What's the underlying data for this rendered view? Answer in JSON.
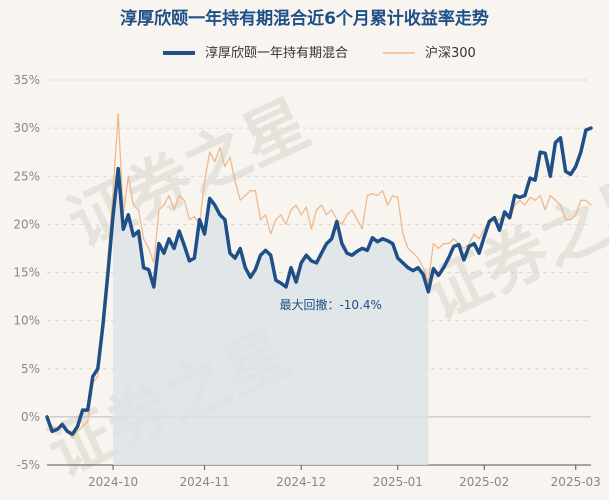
{
  "chart_data": {
    "type": "line",
    "title": "淳厚欣颐一年持有期混合近6个月累计收益率走势",
    "watermark": "证券之星",
    "y_ticks": [
      "35%",
      "30%",
      "25%",
      "20%",
      "15%",
      "10%",
      "5%",
      "0%",
      "-5%"
    ],
    "y_tick_values": [
      35,
      30,
      25,
      20,
      15,
      10,
      5,
      0,
      -5
    ],
    "ylim": [
      -5,
      35
    ],
    "x_ticks": [
      "2024-10",
      "2024-11",
      "2024-12",
      "2025-01",
      "2025-02",
      "2025-03"
    ],
    "x_tick_indices": [
      13,
      31,
      50,
      69,
      86,
      104
    ],
    "grid": true,
    "legend_position": "top",
    "annotation": {
      "label": "最大回撤：",
      "value": "-10.4%",
      "start_index": 13,
      "end_index": 75
    },
    "colors": {
      "fund": "#1e4f87",
      "hs300": "#f0b98c",
      "drawdown_fill": "#dde3e8",
      "grid": "#d8d8d8",
      "zero_line": "#bbbbbb"
    },
    "series": [
      {
        "name": "淳厚欣颐一年持有期混合",
        "values": [
          0.0,
          -1.5,
          -1.3,
          -0.8,
          -1.5,
          -1.8,
          -1.0,
          0.7,
          0.7,
          4.2,
          5.0,
          9.5,
          15.0,
          21.0,
          25.8,
          19.5,
          21.0,
          18.8,
          19.3,
          15.5,
          15.3,
          13.5,
          18.0,
          17.0,
          18.5,
          17.5,
          19.3,
          17.8,
          16.2,
          16.5,
          20.5,
          19.0,
          22.7,
          22.0,
          21.0,
          20.5,
          17.0,
          16.5,
          17.5,
          15.5,
          14.5,
          15.3,
          16.8,
          17.3,
          16.8,
          14.2,
          13.9,
          13.5,
          15.5,
          14.0,
          16.0,
          16.8,
          16.2,
          16.0,
          17.0,
          18.0,
          18.5,
          20.3,
          18.0,
          17.0,
          16.8,
          17.2,
          17.5,
          17.3,
          18.6,
          18.2,
          18.5,
          18.3,
          18.0,
          16.5,
          16.0,
          15.5,
          15.2,
          15.5,
          14.8,
          13.0,
          15.4,
          14.7,
          15.5,
          16.5,
          17.7,
          17.9,
          16.3,
          17.7,
          18.0,
          17.0,
          18.7,
          20.3,
          20.7,
          19.4,
          21.3,
          20.7,
          23.0,
          22.8,
          23.0,
          24.8,
          24.6,
          27.5,
          27.4,
          25.0,
          28.5,
          29.0,
          25.5,
          25.2,
          26.0,
          27.5,
          29.8,
          30.0
        ]
      },
      {
        "name": "沪深300",
        "values": [
          0.0,
          -1.0,
          -1.2,
          -0.5,
          -1.5,
          -2.2,
          -1.5,
          -1.0,
          -0.5,
          3.5,
          4.2,
          10.5,
          16.5,
          23.5,
          31.5,
          21.0,
          25.0,
          22.0,
          21.5,
          18.5,
          17.5,
          16.0,
          21.5,
          22.0,
          23.0,
          21.5,
          23.0,
          22.5,
          20.5,
          20.8,
          20.0,
          24.5,
          27.5,
          26.5,
          28.0,
          26.0,
          27.0,
          24.5,
          22.5,
          23.0,
          23.5,
          23.5,
          20.5,
          21.0,
          19.0,
          20.5,
          21.0,
          20.0,
          21.5,
          22.0,
          21.0,
          21.8,
          19.5,
          21.5,
          22.0,
          21.0,
          21.5,
          20.5,
          20.0,
          21.0,
          21.5,
          20.5,
          19.5,
          23.0,
          23.2,
          23.0,
          23.5,
          22.0,
          23.0,
          22.8,
          19.0,
          17.5,
          17.0,
          16.5,
          15.5,
          14.0,
          18.0,
          17.5,
          18.0,
          18.0,
          18.5,
          18.0,
          17.5,
          18.0,
          19.0,
          18.5,
          19.5,
          20.5,
          20.3,
          20.5,
          21.0,
          20.5,
          22.0,
          22.5,
          22.0,
          22.8,
          22.5,
          23.0,
          21.5,
          23.0,
          22.5,
          22.0,
          20.5,
          20.5,
          21.0,
          22.5,
          22.5,
          22.0
        ]
      }
    ]
  }
}
